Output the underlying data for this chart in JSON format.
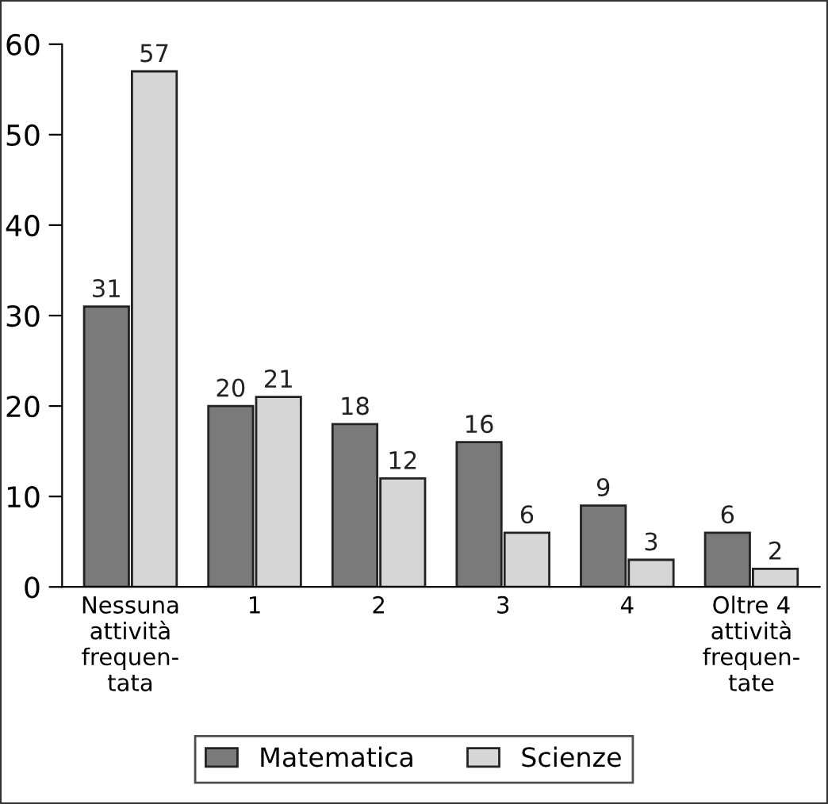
{
  "chart_data": {
    "type": "bar",
    "categories": [
      "Nessuna\nattività\nfrequen-\ntata",
      "1",
      "2",
      "3",
      "4",
      "Oltre 4\nattività\nfrequen-\ntate"
    ],
    "series": [
      {
        "name": "Matematica",
        "color": "#7a7a7a",
        "values": [
          31,
          20,
          18,
          16,
          9,
          6
        ]
      },
      {
        "name": "Scienze",
        "color": "#d6d6d6",
        "values": [
          57,
          21,
          12,
          6,
          3,
          2
        ]
      }
    ],
    "ylim": [
      0,
      60
    ],
    "yticks": [
      0,
      10,
      20,
      30,
      40,
      50,
      60
    ],
    "grid": false,
    "legend": "bottom",
    "data_labels": true
  }
}
